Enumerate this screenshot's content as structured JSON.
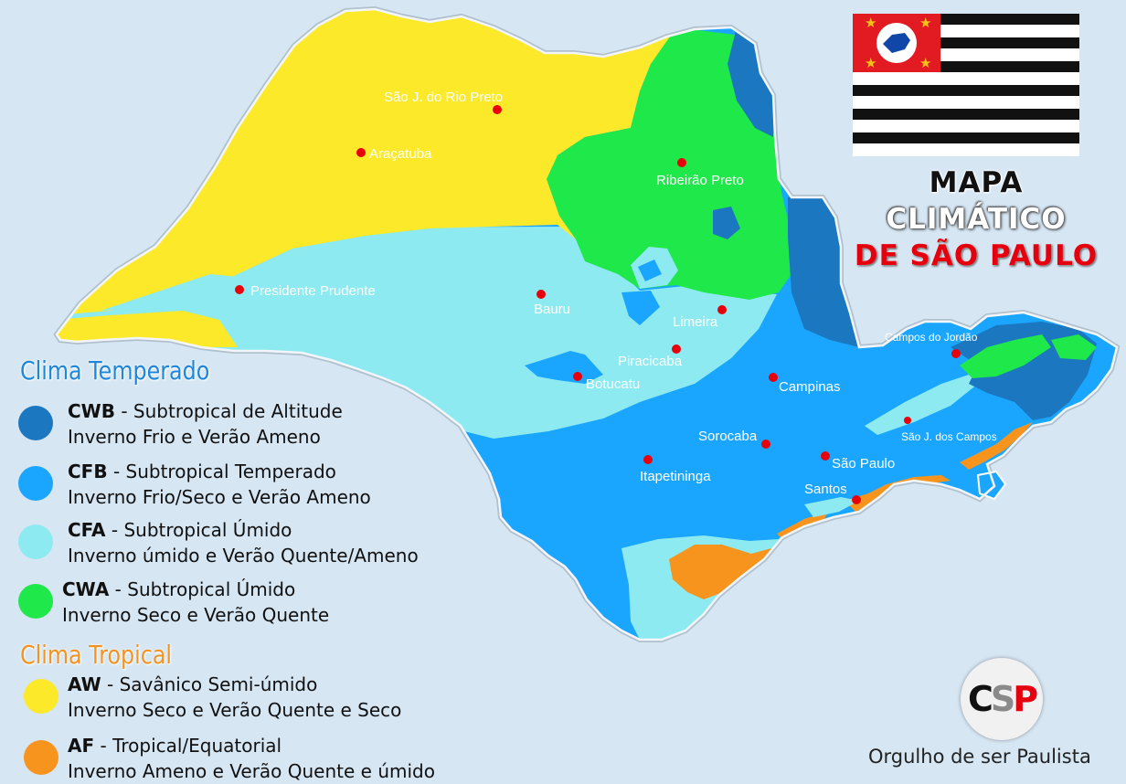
{
  "title": {
    "line1": "MAPA",
    "line2": "CLIMÁTICO",
    "line3": "DE SÃO PAULO"
  },
  "legend": {
    "temperate_title": "Clima Temperado",
    "tropical_title": "Clima Tropical",
    "items": [
      {
        "code": "CWB",
        "desc": " - Subtropical de Altitude",
        "detail": "Inverno Frio e Verão Ameno",
        "color": "#1b77bf"
      },
      {
        "code": "CFB",
        "desc": " - Subtropical Temperado",
        "detail": "Inverno Frio/Seco e Verão Ameno",
        "color": "#1aa6ff"
      },
      {
        "code": "CFA",
        "desc": " - Subtropical Úmido",
        "detail": "Inverno úmido e Verão Quente/Ameno",
        "color": "#8eeaf1"
      },
      {
        "code": "CWA",
        "desc": " - Subtropical Úmido",
        "detail": "Inverno Seco e Verão Quente",
        "color": "#1fe84a"
      },
      {
        "code": "AW",
        "desc": " - Savânico Semi-úmido",
        "detail": "Inverno Seco e Verão Quente e Seco",
        "color": "#fbe92a"
      },
      {
        "code": "AF",
        "desc": " - Tropical/Equatorial",
        "detail": "Inverno Ameno e Verão Quente e úmido",
        "color": "#f7941d"
      }
    ]
  },
  "cities": [
    {
      "name": "São J. do Rio Preto"
    },
    {
      "name": "Araçatuba"
    },
    {
      "name": "Ribeirão Preto"
    },
    {
      "name": "Presidente Prudente"
    },
    {
      "name": "Bauru"
    },
    {
      "name": "Limeira"
    },
    {
      "name": "Piracicaba"
    },
    {
      "name": "Botucatu"
    },
    {
      "name": "Campinas"
    },
    {
      "name": "Campos do Jordão"
    },
    {
      "name": "São J. dos Campos"
    },
    {
      "name": "Sorocaba"
    },
    {
      "name": "São Paulo"
    },
    {
      "name": "Itapetininga"
    },
    {
      "name": "Santos"
    }
  ],
  "logo": {
    "c": "C",
    "s": "S",
    "p": "P"
  },
  "credit": "Orgulho de ser Paulista"
}
